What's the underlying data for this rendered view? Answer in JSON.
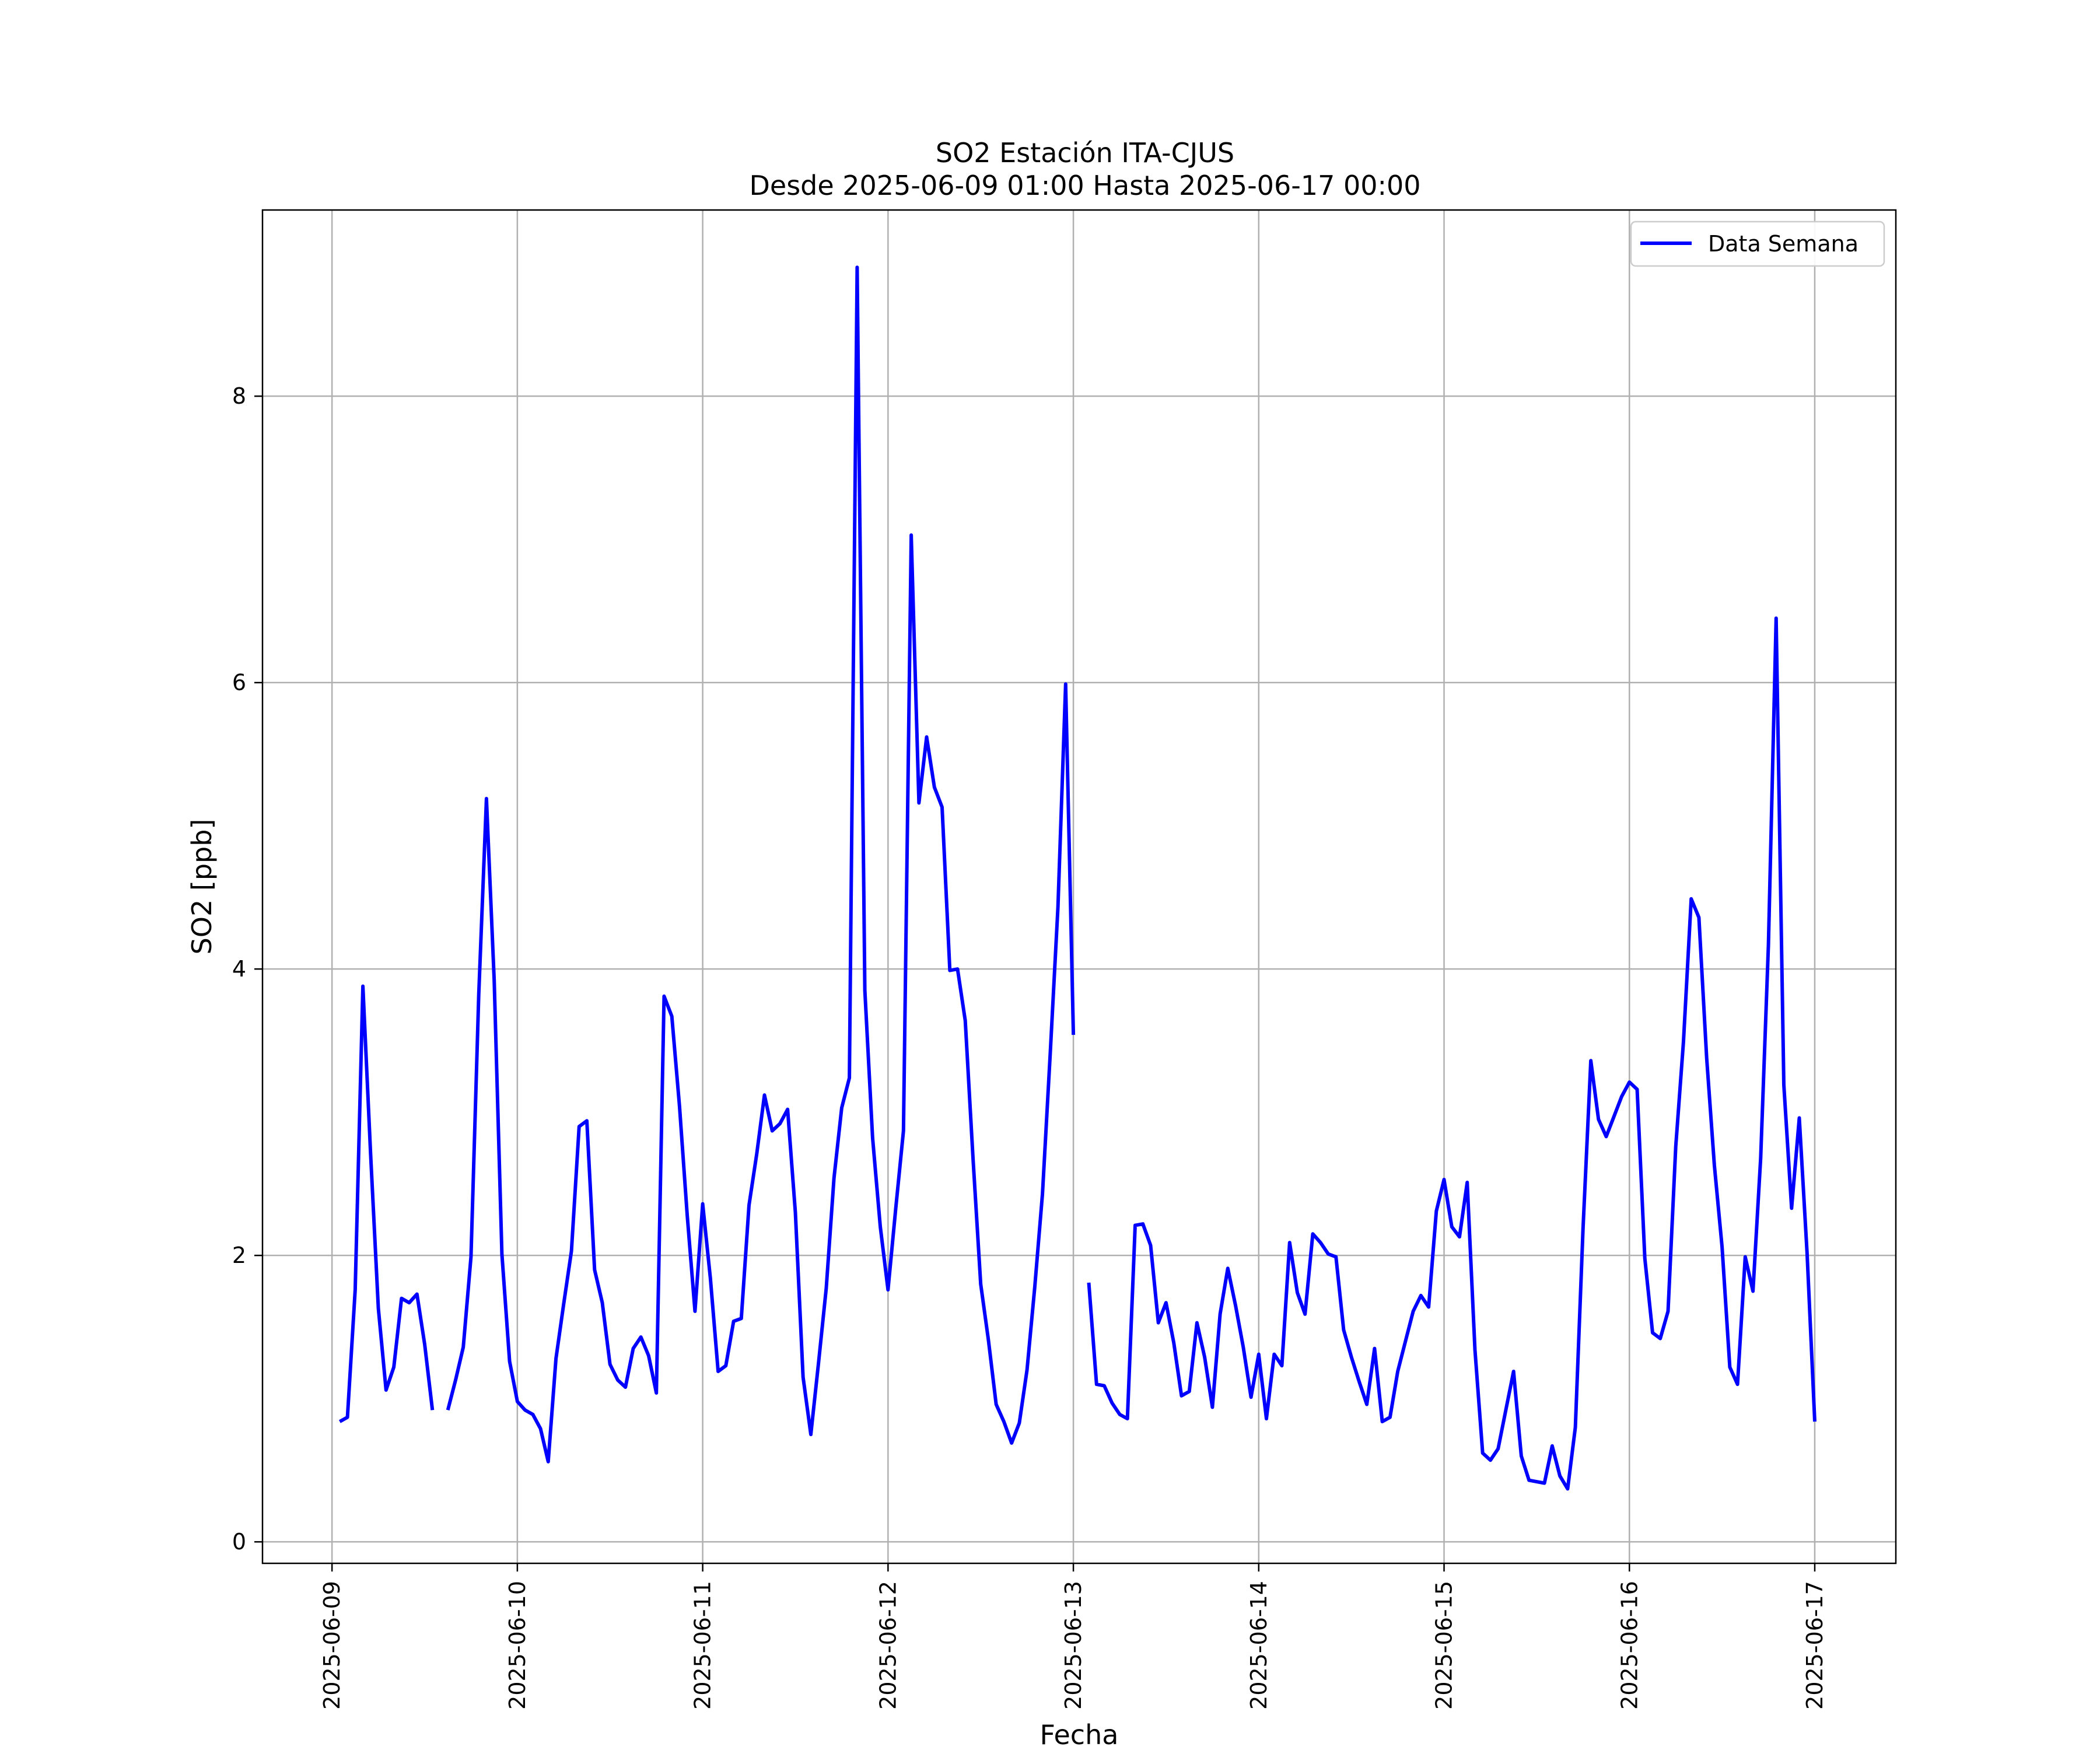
{
  "chart_data": {
    "type": "line",
    "title_line1": "SO2 Estación ITA-CJUS",
    "title_line2": "Desde 2025-06-09 01:00 Hasta 2025-06-17 00:00",
    "xlabel": "Fecha",
    "ylabel": "SO2 [ppb]",
    "ylim": [
      -0.15,
      9.3
    ],
    "xlim": [
      "2025-06-08 15:00",
      "2025-06-17 10:30"
    ],
    "grid": true,
    "legend_position": "top-right",
    "x_ticks": [
      "2025-06-09",
      "2025-06-10",
      "2025-06-11",
      "2025-06-12",
      "2025-06-13",
      "2025-06-14",
      "2025-06-15",
      "2025-06-16",
      "2025-06-17"
    ],
    "y_ticks": [
      0,
      2,
      4,
      6,
      8
    ],
    "series": [
      {
        "name": "Data Semana",
        "color": "#0000ff",
        "points": [
          [
            "2025-06-09 01:00",
            0.84
          ],
          [
            "2025-06-09 02:00",
            0.87
          ],
          [
            "2025-06-09 03:00",
            1.76
          ],
          [
            "2025-06-09 04:00",
            3.88
          ],
          [
            "2025-06-09 05:00",
            2.71
          ],
          [
            "2025-06-09 06:00",
            1.63
          ],
          [
            "2025-06-09 07:00",
            1.06
          ],
          [
            "2025-06-09 08:00",
            1.22
          ],
          [
            "2025-06-09 09:00",
            1.7
          ],
          [
            "2025-06-09 10:00",
            1.67
          ],
          [
            "2025-06-09 11:00",
            1.73
          ],
          [
            "2025-06-09 12:00",
            1.38
          ],
          [
            "2025-06-09 13:00",
            0.92
          ],
          [
            "2025-06-09 14:00",
            null
          ],
          [
            "2025-06-09 15:00",
            0.92
          ],
          [
            "2025-06-09 16:00",
            1.13
          ],
          [
            "2025-06-09 17:00",
            1.36
          ],
          [
            "2025-06-09 18:00",
            1.99
          ],
          [
            "2025-06-09 19:00",
            3.82
          ],
          [
            "2025-06-09 20:00",
            5.19
          ],
          [
            "2025-06-09 21:00",
            3.92
          ],
          [
            "2025-06-09 22:00",
            2.01
          ],
          [
            "2025-06-09 23:00",
            1.26
          ],
          [
            "2025-06-10 00:00",
            0.98
          ],
          [
            "2025-06-10 01:00",
            0.92
          ],
          [
            "2025-06-10 02:00",
            0.89
          ],
          [
            "2025-06-10 03:00",
            0.79
          ],
          [
            "2025-06-10 04:00",
            0.56
          ],
          [
            "2025-06-10 05:00",
            1.28
          ],
          [
            "2025-06-10 06:00",
            1.66
          ],
          [
            "2025-06-10 07:00",
            2.03
          ],
          [
            "2025-06-10 08:00",
            2.9
          ],
          [
            "2025-06-10 09:00",
            2.94
          ],
          [
            "2025-06-10 10:00",
            1.9
          ],
          [
            "2025-06-10 11:00",
            1.67
          ],
          [
            "2025-06-10 12:00",
            1.24
          ],
          [
            "2025-06-10 13:00",
            1.13
          ],
          [
            "2025-06-10 14:00",
            1.08
          ],
          [
            "2025-06-10 15:00",
            1.35
          ],
          [
            "2025-06-10 16:00",
            1.43
          ],
          [
            "2025-06-10 17:00",
            1.3
          ],
          [
            "2025-06-10 18:00",
            1.04
          ],
          [
            "2025-06-10 19:00",
            3.81
          ],
          [
            "2025-06-10 20:00",
            3.67
          ],
          [
            "2025-06-10 21:00",
            3.04
          ],
          [
            "2025-06-10 22:00",
            2.28
          ],
          [
            "2025-06-10 23:00",
            1.61
          ],
          [
            "2025-06-11 00:00",
            2.36
          ],
          [
            "2025-06-11 01:00",
            1.84
          ],
          [
            "2025-06-11 02:00",
            1.19
          ],
          [
            "2025-06-11 03:00",
            1.23
          ],
          [
            "2025-06-11 04:00",
            1.54
          ],
          [
            "2025-06-11 05:00",
            1.56
          ],
          [
            "2025-06-11 06:00",
            2.35
          ],
          [
            "2025-06-11 07:00",
            2.71
          ],
          [
            "2025-06-11 08:00",
            3.12
          ],
          [
            "2025-06-11 09:00",
            2.87
          ],
          [
            "2025-06-11 10:00",
            2.92
          ],
          [
            "2025-06-11 11:00",
            3.02
          ],
          [
            "2025-06-11 12:00",
            2.3
          ],
          [
            "2025-06-11 13:00",
            1.15
          ],
          [
            "2025-06-11 14:00",
            0.75
          ],
          [
            "2025-06-11 15:00",
            1.25
          ],
          [
            "2025-06-11 16:00",
            1.77
          ],
          [
            "2025-06-11 17:00",
            2.54
          ],
          [
            "2025-06-11 18:00",
            3.03
          ],
          [
            "2025-06-11 19:00",
            3.24
          ],
          [
            "2025-06-11 20:00",
            8.9
          ],
          [
            "2025-06-11 21:00",
            3.85
          ],
          [
            "2025-06-11 22:00",
            2.82
          ],
          [
            "2025-06-11 23:00",
            2.2
          ],
          [
            "2025-06-12 00:00",
            1.76
          ],
          [
            "2025-06-12 01:00",
            2.33
          ],
          [
            "2025-06-12 02:00",
            2.87
          ],
          [
            "2025-06-12 03:00",
            7.03
          ],
          [
            "2025-06-12 04:00",
            5.16
          ],
          [
            "2025-06-12 05:00",
            5.62
          ],
          [
            "2025-06-12 06:00",
            5.27
          ],
          [
            "2025-06-12 07:00",
            5.13
          ],
          [
            "2025-06-12 08:00",
            3.99
          ],
          [
            "2025-06-12 09:00",
            4.0
          ],
          [
            "2025-06-12 10:00",
            3.64
          ],
          [
            "2025-06-12 11:00",
            2.68
          ],
          [
            "2025-06-12 12:00",
            1.8
          ],
          [
            "2025-06-12 13:00",
            1.41
          ],
          [
            "2025-06-12 14:00",
            0.96
          ],
          [
            "2025-06-12 15:00",
            0.84
          ],
          [
            "2025-06-12 16:00",
            0.69
          ],
          [
            "2025-06-12 17:00",
            0.83
          ],
          [
            "2025-06-12 18:00",
            1.2
          ],
          [
            "2025-06-12 19:00",
            1.78
          ],
          [
            "2025-06-12 20:00",
            2.43
          ],
          [
            "2025-06-12 21:00",
            3.41
          ],
          [
            "2025-06-12 22:00",
            4.43
          ],
          [
            "2025-06-12 23:00",
            5.99
          ],
          [
            "2025-06-13 00:00",
            3.54
          ],
          [
            "2025-06-13 01:00",
            null
          ],
          [
            "2025-06-13 02:00",
            1.81
          ],
          [
            "2025-06-13 03:00",
            1.1
          ],
          [
            "2025-06-13 04:00",
            1.09
          ],
          [
            "2025-06-13 05:00",
            0.97
          ],
          [
            "2025-06-13 06:00",
            0.89
          ],
          [
            "2025-06-13 07:00",
            0.86
          ],
          [
            "2025-06-13 08:00",
            2.21
          ],
          [
            "2025-06-13 09:00",
            2.22
          ],
          [
            "2025-06-13 10:00",
            2.07
          ],
          [
            "2025-06-13 11:00",
            1.53
          ],
          [
            "2025-06-13 12:00",
            1.67
          ],
          [
            "2025-06-13 13:00",
            1.39
          ],
          [
            "2025-06-13 14:00",
            1.02
          ],
          [
            "2025-06-13 15:00",
            1.05
          ],
          [
            "2025-06-13 16:00",
            1.53
          ],
          [
            "2025-06-13 17:00",
            1.29
          ],
          [
            "2025-06-13 18:00",
            0.94
          ],
          [
            "2025-06-13 19:00",
            1.59
          ],
          [
            "2025-06-13 20:00",
            1.91
          ],
          [
            "2025-06-13 21:00",
            1.65
          ],
          [
            "2025-06-13 22:00",
            1.36
          ],
          [
            "2025-06-13 23:00",
            1.01
          ],
          [
            "2025-06-14 00:00",
            1.31
          ],
          [
            "2025-06-14 01:00",
            0.86
          ],
          [
            "2025-06-14 02:00",
            1.31
          ],
          [
            "2025-06-14 03:00",
            1.23
          ],
          [
            "2025-06-14 04:00",
            2.09
          ],
          [
            "2025-06-14 05:00",
            1.74
          ],
          [
            "2025-06-14 06:00",
            1.59
          ],
          [
            "2025-06-14 07:00",
            2.15
          ],
          [
            "2025-06-14 08:00",
            2.09
          ],
          [
            "2025-06-14 09:00",
            2.01
          ],
          [
            "2025-06-14 10:00",
            1.99
          ],
          [
            "2025-06-14 11:00",
            1.48
          ],
          [
            "2025-06-14 12:00",
            1.29
          ],
          [
            "2025-06-14 13:00",
            1.12
          ],
          [
            "2025-06-14 14:00",
            0.96
          ],
          [
            "2025-06-14 15:00",
            1.35
          ],
          [
            "2025-06-14 16:00",
            0.84
          ],
          [
            "2025-06-14 17:00",
            0.87
          ],
          [
            "2025-06-14 18:00",
            1.19
          ],
          [
            "2025-06-14 19:00",
            1.4
          ],
          [
            "2025-06-14 20:00",
            1.61
          ],
          [
            "2025-06-14 21:00",
            1.72
          ],
          [
            "2025-06-14 22:00",
            1.64
          ],
          [
            "2025-06-14 23:00",
            2.31
          ],
          [
            "2025-06-15 00:00",
            2.53
          ],
          [
            "2025-06-15 01:00",
            2.2
          ],
          [
            "2025-06-15 02:00",
            2.13
          ],
          [
            "2025-06-15 03:00",
            2.51
          ],
          [
            "2025-06-15 04:00",
            1.34
          ],
          [
            "2025-06-15 05:00",
            0.62
          ],
          [
            "2025-06-15 06:00",
            0.57
          ],
          [
            "2025-06-15 07:00",
            0.65
          ],
          [
            "2025-06-15 08:00",
            0.92
          ],
          [
            "2025-06-15 09:00",
            1.19
          ],
          [
            "2025-06-15 10:00",
            0.6
          ],
          [
            "2025-06-15 11:00",
            0.43
          ],
          [
            "2025-06-15 12:00",
            0.42
          ],
          [
            "2025-06-15 13:00",
            0.41
          ],
          [
            "2025-06-15 14:00",
            0.67
          ],
          [
            "2025-06-15 15:00",
            0.46
          ],
          [
            "2025-06-15 16:00",
            0.37
          ],
          [
            "2025-06-15 17:00",
            0.8
          ],
          [
            "2025-06-15 18:00",
            2.19
          ],
          [
            "2025-06-15 19:00",
            3.36
          ],
          [
            "2025-06-15 20:00",
            2.95
          ],
          [
            "2025-06-15 21:00",
            2.83
          ],
          [
            "2025-06-15 22:00",
            2.97
          ],
          [
            "2025-06-15 23:00",
            3.11
          ],
          [
            "2025-06-16 00:00",
            3.21
          ],
          [
            "2025-06-16 01:00",
            3.16
          ],
          [
            "2025-06-16 02:00",
            1.98
          ],
          [
            "2025-06-16 03:00",
            1.46
          ],
          [
            "2025-06-16 04:00",
            1.42
          ],
          [
            "2025-06-16 05:00",
            1.61
          ],
          [
            "2025-06-16 06:00",
            2.76
          ],
          [
            "2025-06-16 07:00",
            3.49
          ],
          [
            "2025-06-16 08:00",
            4.49
          ],
          [
            "2025-06-16 09:00",
            4.36
          ],
          [
            "2025-06-16 10:00",
            3.38
          ],
          [
            "2025-06-16 11:00",
            2.63
          ],
          [
            "2025-06-16 12:00",
            2.06
          ],
          [
            "2025-06-16 13:00",
            1.22
          ],
          [
            "2025-06-16 14:00",
            1.1
          ],
          [
            "2025-06-16 15:00",
            1.99
          ],
          [
            "2025-06-16 16:00",
            1.75
          ],
          [
            "2025-06-16 17:00",
            2.68
          ],
          [
            "2025-06-16 18:00",
            4.17
          ],
          [
            "2025-06-16 19:00",
            6.45
          ],
          [
            "2025-06-16 20:00",
            3.19
          ],
          [
            "2025-06-16 21:00",
            2.33
          ],
          [
            "2025-06-16 22:00",
            2.96
          ],
          [
            "2025-06-16 23:00",
            2.02
          ],
          [
            "2025-06-17 00:00",
            0.84
          ]
        ]
      }
    ]
  }
}
